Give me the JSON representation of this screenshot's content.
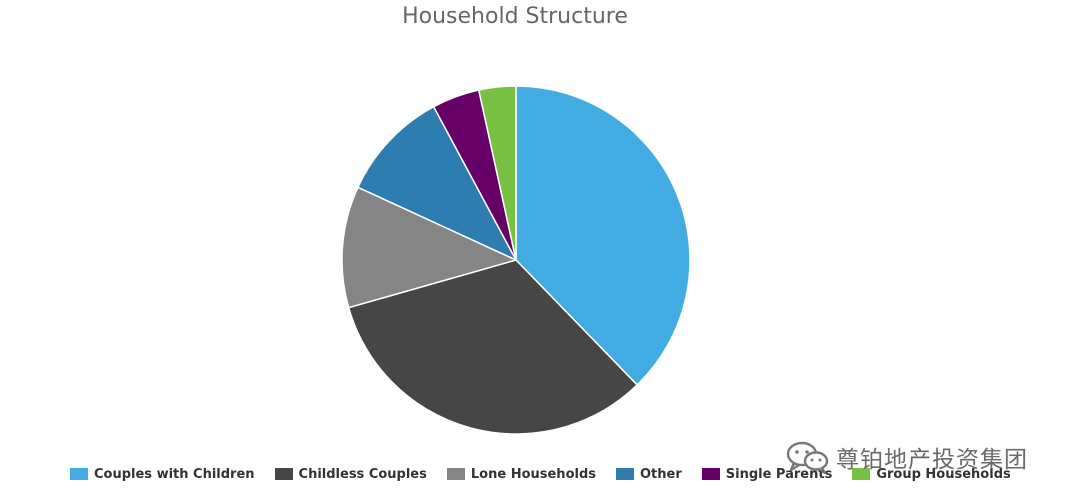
{
  "chart_data": {
    "type": "pie",
    "title": "Household Structure",
    "categories": [
      "Couples with Children",
      "Childless Couples",
      "Lone Households",
      "Other",
      "Single Parents",
      "Group Households"
    ],
    "values": [
      38.5,
      33.5,
      11.5,
      10.5,
      4.5,
      3.5
    ],
    "colors": [
      "#42abe2",
      "#464646",
      "#858585",
      "#2e7db0",
      "#660066",
      "#77c044"
    ],
    "legend_position": "bottom"
  },
  "watermark": {
    "text": "尊铂地产投资集团",
    "icon": "wechat-icon"
  }
}
